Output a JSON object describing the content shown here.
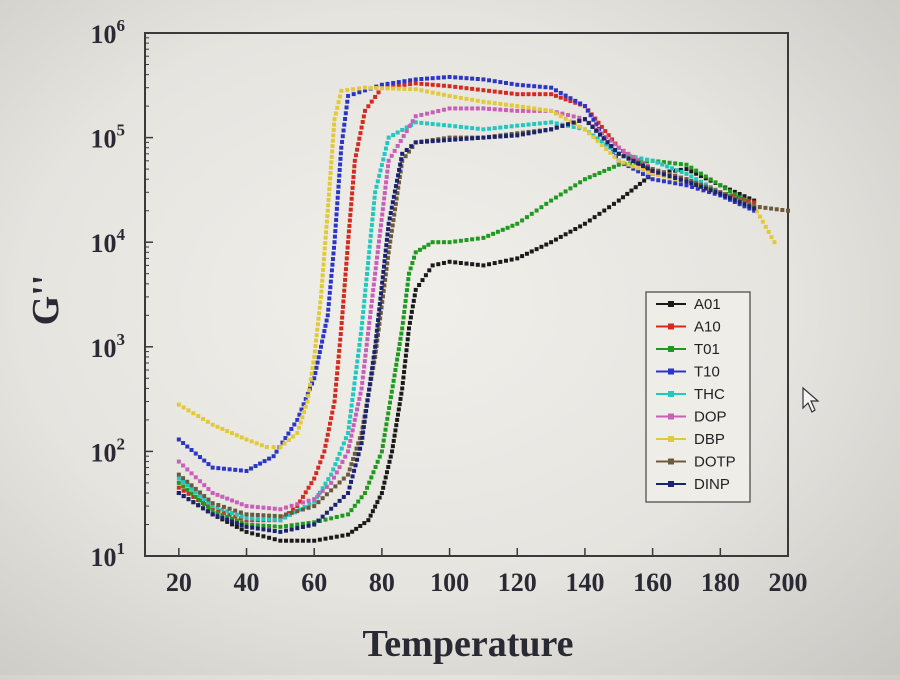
{
  "chart_data": {
    "type": "scatter",
    "title": "",
    "xlabel": "Temperature",
    "ylabel": "G''",
    "xlim": [
      10,
      200
    ],
    "ylim": [
      10,
      1000000
    ],
    "yscale": "log",
    "xticks": [
      20,
      40,
      60,
      80,
      100,
      120,
      140,
      160,
      180,
      200
    ],
    "yticks": [
      {
        "value": 10,
        "base": "10",
        "exp": "1"
      },
      {
        "value": 100,
        "base": "10",
        "exp": "2"
      },
      {
        "value": 1000,
        "base": "10",
        "exp": "3"
      },
      {
        "value": 10000,
        "base": "10",
        "exp": "4"
      },
      {
        "value": 100000,
        "base": "10",
        "exp": "5"
      },
      {
        "value": 1000000,
        "base": "10",
        "exp": "6"
      }
    ],
    "grid": false,
    "legend_position": "right",
    "series": [
      {
        "name": "A01",
        "color": "#1a1a1a",
        "points": [
          [
            20,
            40
          ],
          [
            30,
            25
          ],
          [
            40,
            17
          ],
          [
            50,
            14
          ],
          [
            60,
            14
          ],
          [
            70,
            16
          ],
          [
            76,
            22
          ],
          [
            80,
            40
          ],
          [
            83,
            100
          ],
          [
            86,
            400
          ],
          [
            88,
            1500
          ],
          [
            90,
            3500
          ],
          [
            95,
            6000
          ],
          [
            100,
            6500
          ],
          [
            110,
            6000
          ],
          [
            120,
            7000
          ],
          [
            130,
            10000
          ],
          [
            140,
            15000
          ],
          [
            150,
            25000
          ],
          [
            160,
            45000
          ],
          [
            170,
            50000
          ],
          [
            180,
            35000
          ],
          [
            190,
            25000
          ]
        ]
      },
      {
        "name": "A10",
        "color": "#d42a1f",
        "points": [
          [
            20,
            45
          ],
          [
            30,
            28
          ],
          [
            40,
            22
          ],
          [
            50,
            22
          ],
          [
            55,
            30
          ],
          [
            60,
            55
          ],
          [
            63,
            100
          ],
          [
            66,
            300
          ],
          [
            68,
            1500
          ],
          [
            70,
            10000
          ],
          [
            72,
            60000
          ],
          [
            75,
            180000
          ],
          [
            80,
            300000
          ],
          [
            90,
            330000
          ],
          [
            100,
            310000
          ],
          [
            120,
            260000
          ],
          [
            130,
            260000
          ],
          [
            140,
            200000
          ],
          [
            150,
            80000
          ],
          [
            160,
            45000
          ],
          [
            170,
            40000
          ],
          [
            180,
            30000
          ],
          [
            190,
            24000
          ]
        ]
      },
      {
        "name": "T01",
        "color": "#1f9a1f",
        "points": [
          [
            20,
            50
          ],
          [
            30,
            27
          ],
          [
            40,
            20
          ],
          [
            50,
            19
          ],
          [
            60,
            21
          ],
          [
            70,
            25
          ],
          [
            75,
            40
          ],
          [
            80,
            100
          ],
          [
            84,
            600
          ],
          [
            86,
            1500
          ],
          [
            88,
            5000
          ],
          [
            90,
            8000
          ],
          [
            95,
            10000
          ],
          [
            100,
            10000
          ],
          [
            110,
            11000
          ],
          [
            120,
            15000
          ],
          [
            130,
            25000
          ],
          [
            140,
            40000
          ],
          [
            150,
            55000
          ],
          [
            160,
            60000
          ],
          [
            170,
            55000
          ],
          [
            180,
            35000
          ],
          [
            190,
            22000
          ]
        ]
      },
      {
        "name": "T10",
        "color": "#2b36c8",
        "points": [
          [
            20,
            130
          ],
          [
            30,
            70
          ],
          [
            40,
            65
          ],
          [
            48,
            90
          ],
          [
            55,
            200
          ],
          [
            60,
            500
          ],
          [
            64,
            2000
          ],
          [
            66,
            10000
          ],
          [
            68,
            80000
          ],
          [
            70,
            250000
          ],
          [
            80,
            320000
          ],
          [
            90,
            360000
          ],
          [
            100,
            380000
          ],
          [
            110,
            360000
          ],
          [
            120,
            320000
          ],
          [
            130,
            300000
          ],
          [
            140,
            200000
          ],
          [
            150,
            60000
          ],
          [
            160,
            40000
          ],
          [
            170,
            35000
          ],
          [
            180,
            28000
          ],
          [
            190,
            20000
          ]
        ]
      },
      {
        "name": "THC",
        "color": "#22c7c0",
        "points": [
          [
            20,
            55
          ],
          [
            30,
            30
          ],
          [
            40,
            23
          ],
          [
            50,
            22
          ],
          [
            60,
            33
          ],
          [
            65,
            60
          ],
          [
            70,
            150
          ],
          [
            74,
            1500
          ],
          [
            78,
            30000
          ],
          [
            82,
            100000
          ],
          [
            90,
            140000
          ],
          [
            100,
            130000
          ],
          [
            110,
            120000
          ],
          [
            120,
            130000
          ],
          [
            130,
            140000
          ],
          [
            140,
            120000
          ],
          [
            150,
            70000
          ],
          [
            160,
            60000
          ],
          [
            170,
            45000
          ],
          [
            180,
            30000
          ],
          [
            190,
            22000
          ]
        ]
      },
      {
        "name": "DOP",
        "color": "#c85fb8",
        "points": [
          [
            20,
            80
          ],
          [
            30,
            40
          ],
          [
            40,
            30
          ],
          [
            50,
            28
          ],
          [
            60,
            35
          ],
          [
            65,
            50
          ],
          [
            70,
            100
          ],
          [
            74,
            400
          ],
          [
            78,
            5000
          ],
          [
            82,
            60000
          ],
          [
            90,
            160000
          ],
          [
            100,
            190000
          ],
          [
            110,
            190000
          ],
          [
            120,
            180000
          ],
          [
            130,
            180000
          ],
          [
            140,
            150000
          ],
          [
            150,
            80000
          ],
          [
            160,
            50000
          ],
          [
            170,
            40000
          ],
          [
            180,
            30000
          ],
          [
            190,
            22000
          ]
        ]
      },
      {
        "name": "DBP",
        "color": "#e2c93a",
        "points": [
          [
            20,
            280
          ],
          [
            30,
            180
          ],
          [
            40,
            130
          ],
          [
            46,
            110
          ],
          [
            50,
            110
          ],
          [
            55,
            150
          ],
          [
            58,
            300
          ],
          [
            60,
            800
          ],
          [
            62,
            3000
          ],
          [
            64,
            20000
          ],
          [
            66,
            150000
          ],
          [
            68,
            280000
          ],
          [
            75,
            300000
          ],
          [
            90,
            290000
          ],
          [
            100,
            250000
          ],
          [
            110,
            220000
          ],
          [
            120,
            200000
          ],
          [
            130,
            180000
          ],
          [
            140,
            120000
          ],
          [
            150,
            60000
          ],
          [
            160,
            45000
          ],
          [
            170,
            38000
          ],
          [
            180,
            30000
          ],
          [
            190,
            22000
          ],
          [
            196,
            10000
          ]
        ]
      },
      {
        "name": "DOTP",
        "color": "#6b5a3c",
        "points": [
          [
            20,
            60
          ],
          [
            30,
            32
          ],
          [
            40,
            25
          ],
          [
            50,
            24
          ],
          [
            60,
            30
          ],
          [
            70,
            60
          ],
          [
            74,
            150
          ],
          [
            78,
            800
          ],
          [
            82,
            8000
          ],
          [
            86,
            60000
          ],
          [
            90,
            90000
          ],
          [
            100,
            100000
          ],
          [
            110,
            100000
          ],
          [
            120,
            110000
          ],
          [
            130,
            120000
          ],
          [
            140,
            150000
          ],
          [
            150,
            70000
          ],
          [
            160,
            50000
          ],
          [
            170,
            40000
          ],
          [
            180,
            30000
          ],
          [
            190,
            22000
          ],
          [
            200,
            20000
          ]
        ]
      },
      {
        "name": "DINP",
        "color": "#1b2270",
        "points": [
          [
            20,
            40
          ],
          [
            30,
            25
          ],
          [
            40,
            19
          ],
          [
            50,
            17
          ],
          [
            60,
            20
          ],
          [
            70,
            40
          ],
          [
            74,
            120
          ],
          [
            78,
            1000
          ],
          [
            82,
            15000
          ],
          [
            86,
            70000
          ],
          [
            90,
            90000
          ],
          [
            100,
            95000
          ],
          [
            110,
            100000
          ],
          [
            120,
            105000
          ],
          [
            130,
            120000
          ],
          [
            140,
            150000
          ],
          [
            150,
            70000
          ],
          [
            160,
            48000
          ],
          [
            170,
            38000
          ],
          [
            180,
            29000
          ],
          [
            190,
            21000
          ]
        ]
      }
    ]
  }
}
